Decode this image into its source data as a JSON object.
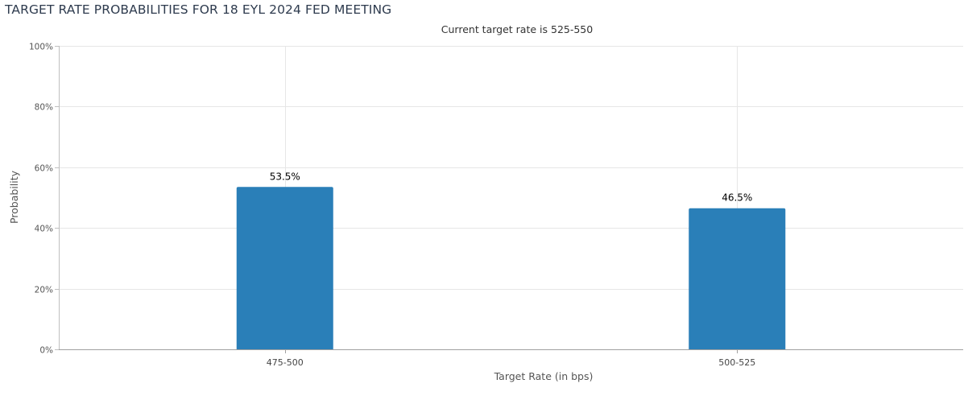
{
  "page_title": "TARGET RATE PROBABILITIES FOR 18 EYL 2024 FED MEETING",
  "chart_data": {
    "type": "bar",
    "subtitle": "Current target rate is 525-550",
    "xlabel": "Target Rate (in bps)",
    "ylabel": "Probability",
    "categories": [
      "475-500",
      "500-525"
    ],
    "values": [
      53.5,
      46.5
    ],
    "data_labels": [
      "53.5%",
      "46.5%"
    ],
    "ylim": [
      0,
      100
    ],
    "yticks": [
      0,
      20,
      40,
      60,
      80,
      100
    ],
    "ytick_labels": [
      "0%",
      "20%",
      "40%",
      "60%",
      "80%",
      "100%"
    ],
    "grid": true,
    "legend": "none",
    "bar_color": "#2a7fb8"
  }
}
